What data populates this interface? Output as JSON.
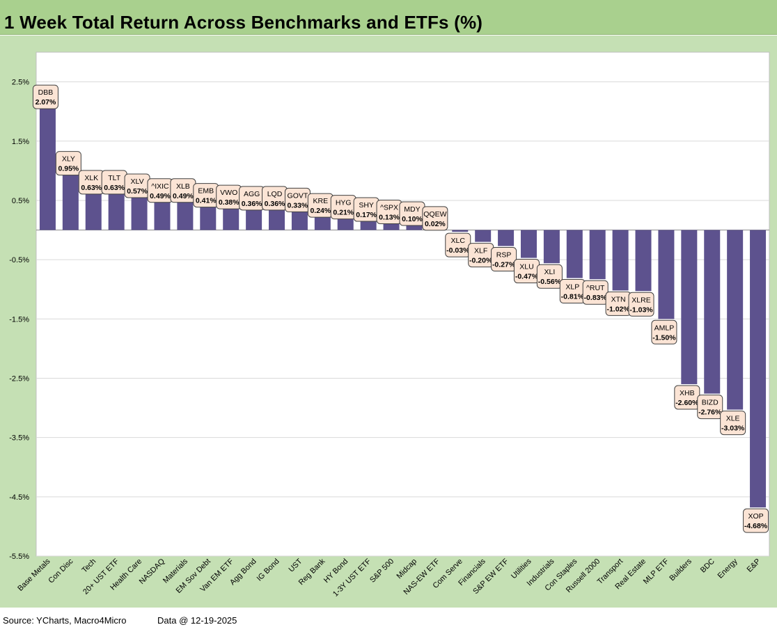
{
  "title": "1 Week Total Return Across Benchmarks and ETFs (%)",
  "source": "Source: YCharts, Macro4Micro",
  "data_as_of": "Data @ 12-19-2025",
  "colors": {
    "bar": "#5d528e",
    "background": "#c5e0b4",
    "title_bar": "#a9d08e",
    "plot": "#ffffff",
    "label_fill": "#fbe4d5",
    "gridline": "#d9d9d9"
  },
  "chart_data": {
    "type": "bar",
    "title": "1 Week Total Return Across Benchmarks and ETFs (%)",
    "xlabel": "",
    "ylabel": "",
    "ylim": [
      -5.5,
      3.0
    ],
    "yticks": [
      2.5,
      1.5,
      0.5,
      -0.5,
      -1.5,
      -2.5,
      -3.5,
      -4.5,
      -5.5
    ],
    "ytick_labels": [
      "2.5%",
      "1.5%",
      "0.5%",
      "-0.5%",
      "-1.5%",
      "-2.5%",
      "-3.5%",
      "-4.5%",
      "-5.5%"
    ],
    "grid": true,
    "categories": [
      "Base Metals",
      "Con Disc",
      "Tech",
      "20+ UST ETF",
      "Health Care",
      "NASDAQ",
      "Materials",
      "EM Sov Debt",
      "Van EM ETF",
      "Agg Bond",
      "IG Bond",
      "UST",
      "Reg Bank",
      "HY Bond",
      "1-3Y UST ETF",
      "S&P 500",
      "Midcap",
      "NAS-EW ETF",
      "Com Serve",
      "Financials",
      "S&P EW ETF",
      "Utilities",
      "Industrials",
      "Con Staples",
      "Russell 2000",
      "Transport",
      "Real Estate",
      "MLP ETF",
      "Builders",
      "BDC",
      "Energy",
      "E&P"
    ],
    "tickers": [
      "DBB",
      "XLY",
      "XLK",
      "TLT",
      "XLV",
      "^IXIC",
      "XLB",
      "EMB",
      "VWO",
      "AGG",
      "LQD",
      "GOVT",
      "KRE",
      "HYG",
      "SHY",
      "^SPX",
      "MDY",
      "QQEW",
      "XLC",
      "XLF",
      "RSP",
      "XLU",
      "XLI",
      "XLP",
      "^RUT",
      "XTN",
      "XLRE",
      "AMLP",
      "XHB",
      "BIZD",
      "XLE",
      "XOP"
    ],
    "values": [
      2.07,
      0.95,
      0.63,
      0.63,
      0.57,
      0.49,
      0.49,
      0.41,
      0.38,
      0.36,
      0.36,
      0.33,
      0.24,
      0.21,
      0.17,
      0.13,
      0.1,
      0.02,
      -0.03,
      -0.2,
      -0.27,
      -0.47,
      -0.56,
      -0.81,
      -0.83,
      -1.02,
      -1.03,
      -1.5,
      -2.6,
      -2.76,
      -3.03,
      -4.68
    ],
    "value_labels": [
      "2.07%",
      "0.95%",
      "0.63%",
      "0.63%",
      "0.57%",
      "0.49%",
      "0.49%",
      "0.41%",
      "0.38%",
      "0.36%",
      "0.36%",
      "0.33%",
      "0.24%",
      "0.21%",
      "0.17%",
      "0.13%",
      "0.10%",
      "0.02%",
      "-0.03%",
      "-0.20%",
      "-0.27%",
      "-0.47%",
      "-0.56%",
      "-0.81%",
      "-0.83%",
      "-1.02%",
      "-1.03%",
      "-1.50%",
      "-2.60%",
      "-2.76%",
      "-3.03%",
      "-4.68%"
    ]
  }
}
